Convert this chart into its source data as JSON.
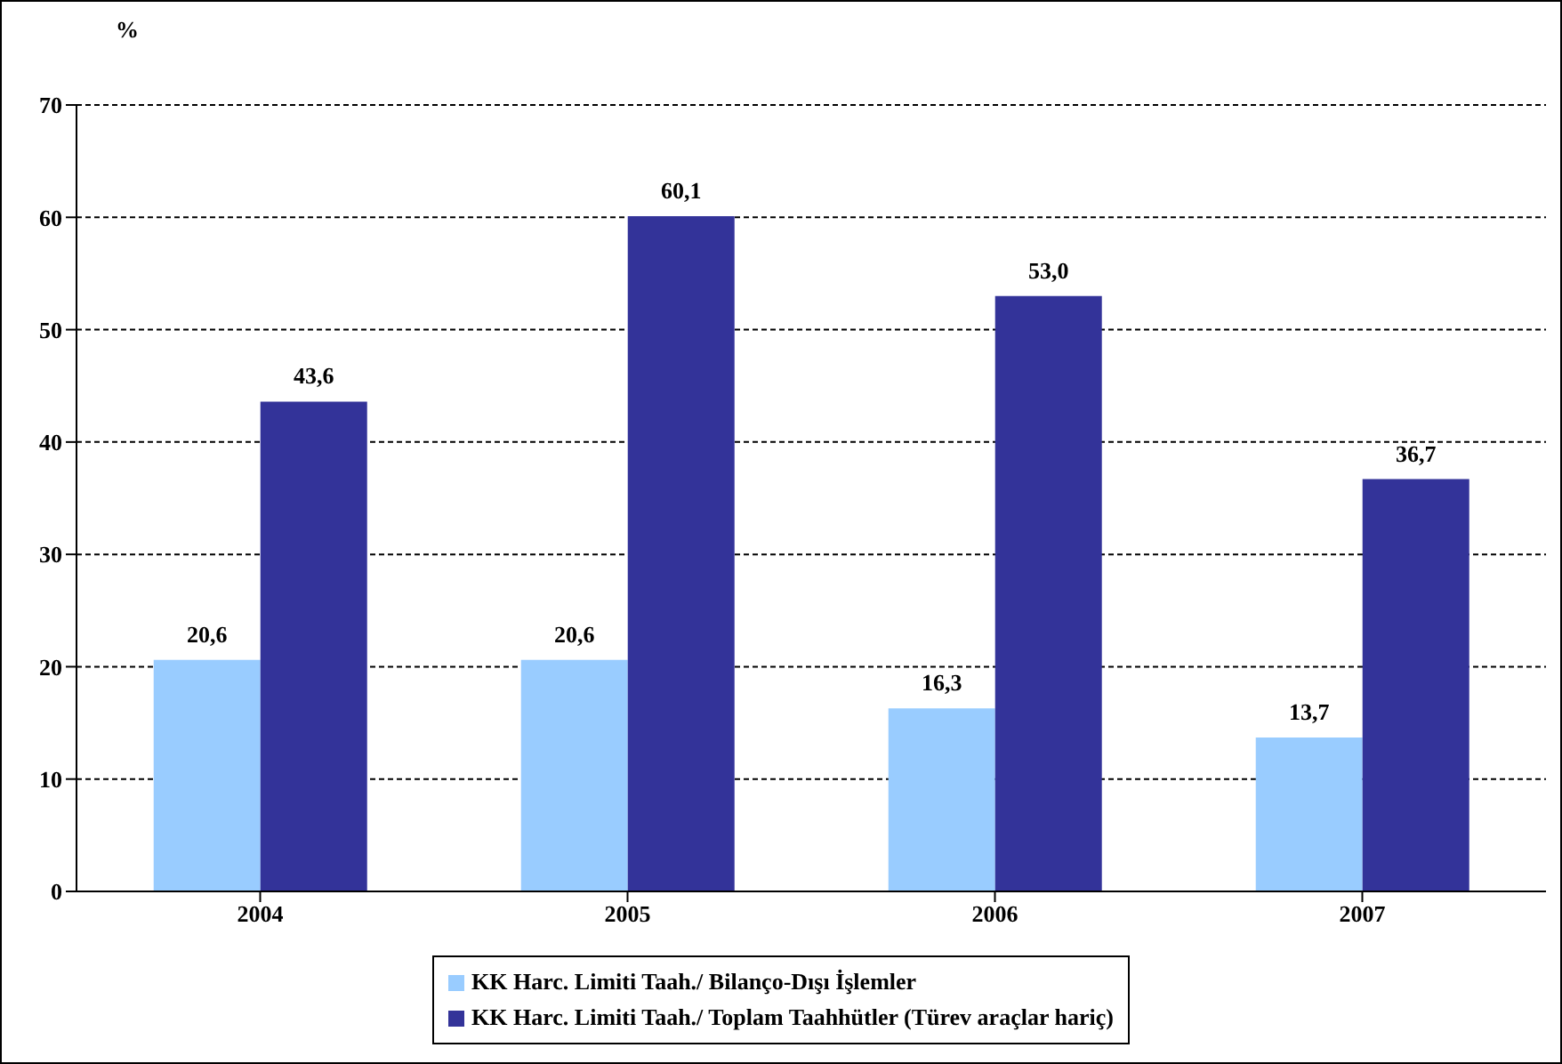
{
  "chart_data": {
    "type": "bar",
    "ylabel": "%",
    "categories": [
      "2004",
      "2005",
      "2006",
      "2007"
    ],
    "series": [
      {
        "name": "KK Harc. Limiti Taah./ Bilanço-Dışı İşlemler",
        "color": "#99ccff",
        "values": [
          20.6,
          20.6,
          16.3,
          13.7
        ],
        "value_labels": [
          "20,6",
          "20,6",
          "16,3",
          "13,7"
        ]
      },
      {
        "name": "KK Harc. Limiti Taah./ Toplam Taahhütler (Türev araçlar hariç)",
        "color": "#333399",
        "values": [
          43.6,
          60.1,
          53.0,
          36.7
        ],
        "value_labels": [
          "43,6",
          "60,1",
          "53,0",
          "36,7"
        ]
      }
    ],
    "ylim": [
      0,
      70
    ],
    "yticks": [
      0,
      10,
      20,
      30,
      40,
      50,
      60,
      70
    ],
    "grid": "y",
    "legend": "bottom"
  }
}
